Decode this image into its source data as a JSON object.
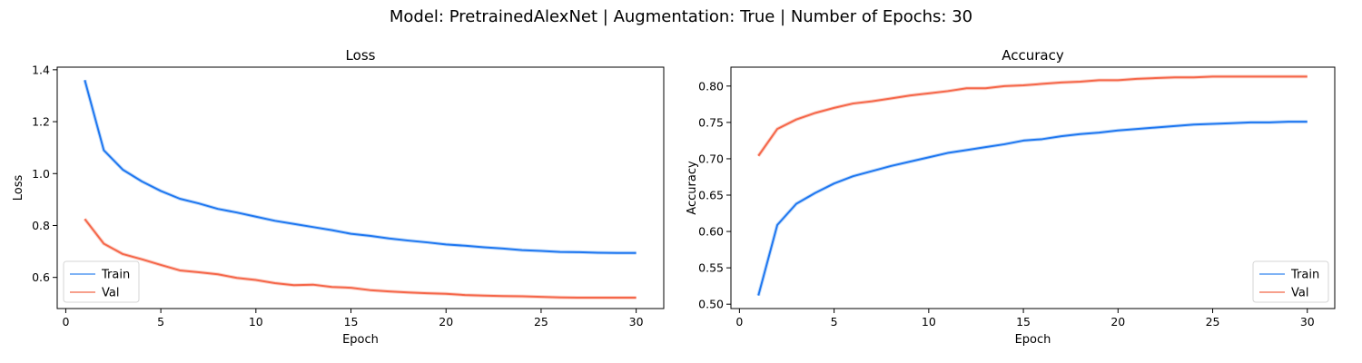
{
  "figure": {
    "suptitle": "Model: PretrainedAlexNet | Augmentation: True | Number of Epochs: 30"
  },
  "colors": {
    "train": "#1f77f0",
    "val": "#f5674a",
    "train_light": "#7fb3f5",
    "val_light": "#f7a08c"
  },
  "chart_data": [
    {
      "type": "line",
      "title": "Loss",
      "xlabel": "Epoch",
      "ylabel": "Loss",
      "xlim": [
        -0.45,
        31.45
      ],
      "ylim": [
        0.48,
        1.41
      ],
      "xticks": [
        0,
        5,
        10,
        15,
        20,
        25,
        30
      ],
      "yticks": [
        0.6,
        0.8,
        1.0,
        1.2,
        1.4
      ],
      "ytick_labels": [
        "0.6",
        "0.8",
        "1.0",
        "1.2",
        "1.4"
      ],
      "legend": {
        "placement": "lower-left",
        "entries": [
          "Train",
          "Val"
        ]
      },
      "grid": false,
      "x": [
        1,
        2,
        3,
        4,
        5,
        6,
        7,
        8,
        9,
        10,
        11,
        12,
        13,
        14,
        15,
        16,
        17,
        18,
        19,
        20,
        21,
        22,
        23,
        24,
        25,
        26,
        27,
        28,
        29,
        30
      ],
      "series": [
        {
          "name": "Train",
          "values": [
            1.36,
            1.09,
            1.015,
            0.97,
            0.933,
            0.903,
            0.885,
            0.864,
            0.85,
            0.834,
            0.818,
            0.806,
            0.794,
            0.782,
            0.768,
            0.76,
            0.75,
            0.742,
            0.735,
            0.727,
            0.722,
            0.716,
            0.711,
            0.705,
            0.702,
            0.698,
            0.697,
            0.695,
            0.694,
            0.694
          ]
        },
        {
          "name": "Val",
          "values": [
            0.825,
            0.73,
            0.69,
            0.67,
            0.648,
            0.627,
            0.62,
            0.612,
            0.598,
            0.59,
            0.578,
            0.57,
            0.572,
            0.563,
            0.56,
            0.551,
            0.546,
            0.542,
            0.539,
            0.537,
            0.532,
            0.53,
            0.528,
            0.527,
            0.525,
            0.523,
            0.522,
            0.522,
            0.522,
            0.522
          ]
        }
      ]
    },
    {
      "type": "line",
      "title": "Accuracy",
      "xlabel": "Epoch",
      "ylabel": "Accuracy",
      "xlim": [
        -0.45,
        31.45
      ],
      "ylim": [
        0.494,
        0.826
      ],
      "xticks": [
        0,
        5,
        10,
        15,
        20,
        25,
        30
      ],
      "yticks": [
        0.5,
        0.55,
        0.6,
        0.65,
        0.7,
        0.75,
        0.8
      ],
      "ytick_labels": [
        "0.50",
        "0.55",
        "0.60",
        "0.65",
        "0.70",
        "0.75",
        "0.80"
      ],
      "legend": {
        "placement": "lower-right",
        "entries": [
          "Train",
          "Val"
        ]
      },
      "grid": false,
      "x": [
        1,
        2,
        3,
        4,
        5,
        6,
        7,
        8,
        9,
        10,
        11,
        12,
        13,
        14,
        15,
        16,
        17,
        18,
        19,
        20,
        21,
        22,
        23,
        24,
        25,
        26,
        27,
        28,
        29,
        30
      ],
      "series": [
        {
          "name": "Train",
          "values": [
            0.512,
            0.609,
            0.638,
            0.653,
            0.666,
            0.676,
            0.683,
            0.69,
            0.696,
            0.702,
            0.708,
            0.712,
            0.716,
            0.72,
            0.725,
            0.727,
            0.731,
            0.734,
            0.736,
            0.739,
            0.741,
            0.743,
            0.745,
            0.747,
            0.748,
            0.749,
            0.75,
            0.75,
            0.751,
            0.751
          ]
        },
        {
          "name": "Val",
          "values": [
            0.704,
            0.741,
            0.754,
            0.763,
            0.77,
            0.776,
            0.779,
            0.783,
            0.787,
            0.79,
            0.793,
            0.797,
            0.797,
            0.8,
            0.801,
            0.803,
            0.805,
            0.806,
            0.808,
            0.808,
            0.81,
            0.811,
            0.812,
            0.812,
            0.813,
            0.813,
            0.813,
            0.813,
            0.813,
            0.813
          ]
        }
      ]
    }
  ]
}
